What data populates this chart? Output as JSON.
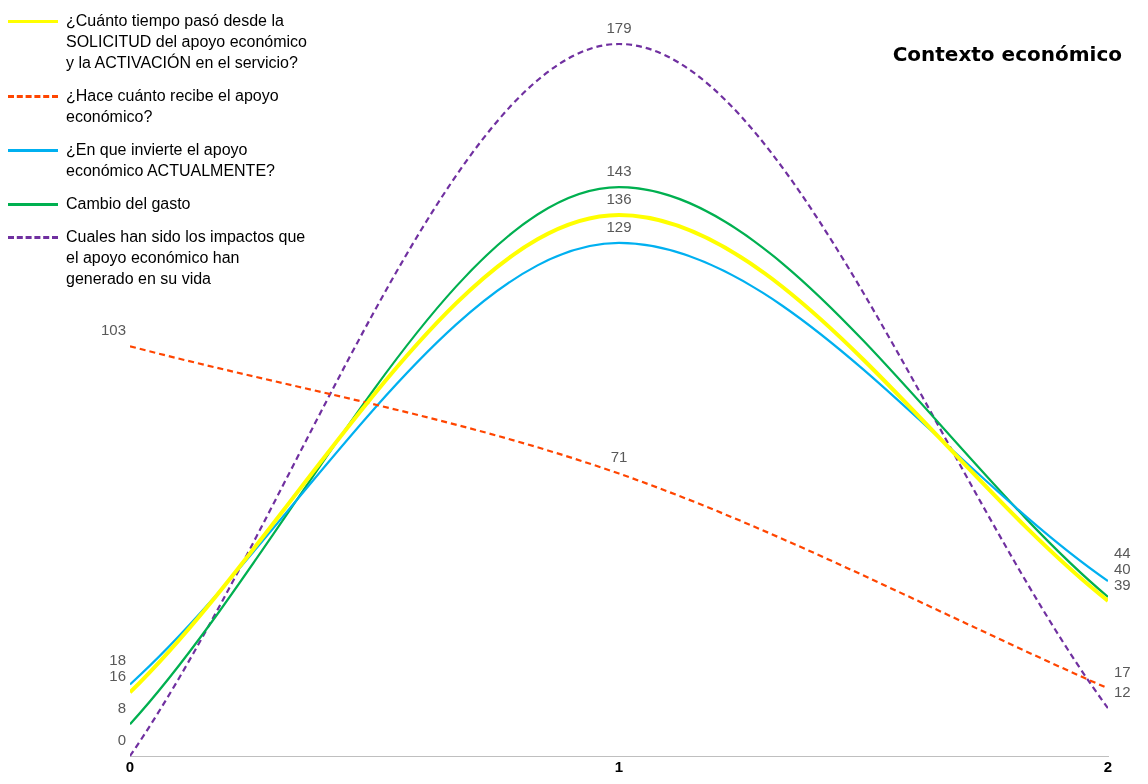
{
  "chart_data": {
    "type": "line",
    "title": "Contexto económico",
    "x": [
      0,
      1,
      2
    ],
    "xlim": [
      0,
      2
    ],
    "xticks": [
      0,
      1,
      2
    ],
    "tick_labels": "x",
    "grid": false,
    "legend": "top left",
    "marker": "none",
    "data_labels": true,
    "series": [
      {
        "name": "¿Cuánto tiempo pasó desde la SOLICITUD del apoyo económico y la ACTIVACIÓN en el servicio?",
        "color": "#ffff00",
        "line_style": "solid",
        "values": [
          16,
          136,
          39
        ]
      },
      {
        "name": "¿Hace cuánto recibe el apoyo económico?",
        "color": "#ff4500",
        "line_style": "dashed",
        "values": [
          103,
          71,
          17
        ]
      },
      {
        "name": "¿En que invierte el apoyo económico ACTUALMENTE?",
        "color": "#00b0f0",
        "line_style": "solid",
        "values": [
          18,
          129,
          44
        ]
      },
      {
        "name": "Cambio del gasto",
        "color": "#00b050",
        "line_style": "solid",
        "values": [
          8,
          143,
          40
        ]
      },
      {
        "name": "Cuales han sido los impactos que el apoyo económico han generado en su vida",
        "color": "#7030a0",
        "line_style": "dashed",
        "values": [
          0,
          179,
          12
        ]
      }
    ]
  }
}
